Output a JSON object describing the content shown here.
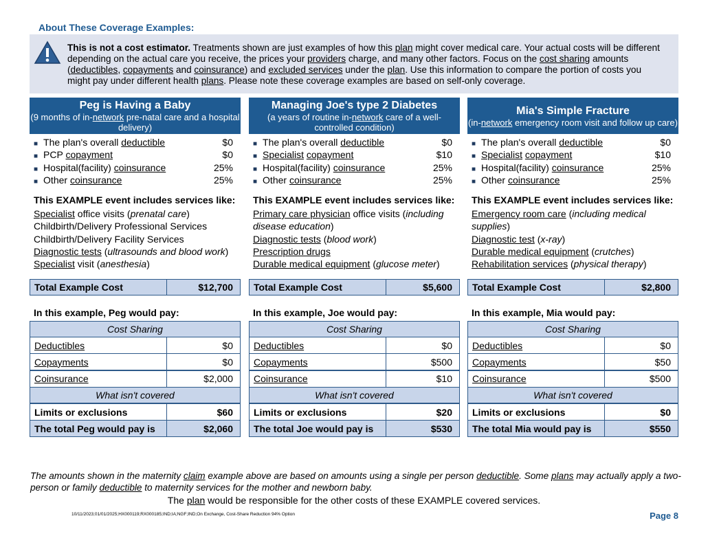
{
  "heading": "About These Coverage Examples:",
  "intro": [
    {
      "b": "This is not a cost estimator."
    },
    " Treatments shown are just examples of how this ",
    {
      "u": "plan"
    },
    " might cover medical care. Your actual costs will be different depending on the actual care you receive, the prices your ",
    {
      "u": "providers"
    },
    " charge, and many other factors. Focus on the ",
    {
      "u": "cost sharing"
    },
    " amounts (",
    {
      "u": "deductibles"
    },
    ", ",
    {
      "u": "copayments"
    },
    " and ",
    {
      "u": "coinsurance"
    },
    ") and ",
    {
      "u": "excluded services"
    },
    " under the ",
    {
      "u": "plan"
    },
    ". Use this information to compare the portion of costs you might pay under different health ",
    {
      "u": "plans"
    },
    ". Please note these coverage examples are based on self-only coverage."
  ],
  "columns": [
    {
      "title": "Peg is Having a Baby",
      "subtitle": [
        "(9 months of in-",
        {
          "u": "network"
        },
        " pre-natal care and a hospital delivery)"
      ],
      "bullets": [
        {
          "label": [
            "The plan's overall ",
            {
              "u": "deductible"
            }
          ],
          "value": "$0"
        },
        {
          "label": [
            "PCP ",
            {
              "u": "copayment"
            }
          ],
          "value": "$0"
        },
        {
          "label": [
            "Hospital(facility) ",
            {
              "u": "coinsurance"
            }
          ],
          "value": "25%"
        },
        {
          "label": [
            "Other ",
            {
              "u": "coinsurance"
            }
          ],
          "value": "25%"
        }
      ],
      "services_heading": "This EXAMPLE event includes services like:",
      "services": [
        [
          {
            "u": "Specialist"
          },
          " office visits (",
          {
            "i": "prenatal care"
          },
          ")"
        ],
        [
          "Childbirth/Delivery Professional Services"
        ],
        [
          "Childbirth/Delivery Facility Services"
        ],
        [
          {
            "u": "Diagnostic tests"
          },
          " (",
          {
            "i": "ultrasounds and blood work"
          },
          ")"
        ],
        [
          {
            "u": "Specialist"
          },
          " visit (",
          {
            "i": "anesthesia"
          },
          ")"
        ]
      ],
      "total_label": "Total Example Cost",
      "total_value": "$12,700",
      "pay_heading": "In this example, Peg would pay:",
      "cost_sharing": "Cost Sharing",
      "rows": [
        {
          "label": "Deductibles",
          "value": "$0"
        },
        {
          "label": "Copayments",
          "value": "$0"
        },
        {
          "label": "Coinsurance",
          "value": "$2,000"
        }
      ],
      "not_covered": "What isn't covered",
      "limits_label": "Limits or exclusions",
      "limits_value": "$60",
      "pay_total_label": "The total Peg would pay is",
      "pay_total_value": "$2,060"
    },
    {
      "title": "Managing Joe's type 2 Diabetes",
      "subtitle": [
        "(a years of routine in-",
        {
          "u": "network"
        },
        " care of a well-controlled condition)"
      ],
      "bullets": [
        {
          "label": [
            "The plan's overall ",
            {
              "u": "deductible"
            }
          ],
          "value": "$0"
        },
        {
          "label": [
            {
              "u": "Specialist"
            },
            " ",
            {
              "u": "copayment"
            }
          ],
          "value": "$10"
        },
        {
          "label": [
            "Hospital(facility) ",
            {
              "u": "coinsurance"
            }
          ],
          "value": "25%"
        },
        {
          "label": [
            "Other ",
            {
              "u": "coinsurance"
            }
          ],
          "value": "25%"
        }
      ],
      "services_heading": "This EXAMPLE event includes services like:",
      "services": [
        [
          {
            "u": "Primary care physician"
          },
          " office visits (",
          {
            "i": "including disease education"
          },
          ")"
        ],
        [
          {
            "u": "Diagnostic tests"
          },
          " (",
          {
            "i": "blood work"
          },
          ")"
        ],
        [
          {
            "u": "Prescription drugs"
          }
        ],
        [
          {
            "u": "Durable medical equipment"
          },
          " (",
          {
            "i": "glucose meter"
          },
          ")"
        ]
      ],
      "total_label": "Total Example Cost",
      "total_value": "$5,600",
      "pay_heading": "In this example, Joe would pay:",
      "cost_sharing": "Cost Sharing",
      "rows": [
        {
          "label": "Deductibles",
          "value": "$0"
        },
        {
          "label": "Copayments",
          "value": "$500"
        },
        {
          "label": "Coinsurance",
          "value": "$10"
        }
      ],
      "not_covered": "What isn't covered",
      "limits_label": "Limits or exclusions",
      "limits_value": "$20",
      "pay_total_label": "The total Joe would pay is",
      "pay_total_value": "$530"
    },
    {
      "title": "Mia's Simple Fracture",
      "subtitle": [
        "(in-",
        {
          "u": "network"
        },
        " emergency room visit and follow up care)"
      ],
      "bullets": [
        {
          "label": [
            "The plan's overall ",
            {
              "u": "deductible"
            }
          ],
          "value": "$0"
        },
        {
          "label": [
            {
              "u": "Specialist"
            },
            " ",
            {
              "u": "copayment"
            }
          ],
          "value": "$10"
        },
        {
          "label": [
            "Hospital(facility) ",
            {
              "u": "coinsurance"
            }
          ],
          "value": "25%"
        },
        {
          "label": [
            "Other ",
            {
              "u": "coinsurance"
            }
          ],
          "value": "25%"
        }
      ],
      "services_heading": "This EXAMPLE event includes services like:",
      "services": [
        [
          {
            "u": "Emergency room care"
          },
          " (",
          {
            "i": "including medical supplies"
          },
          ")"
        ],
        [
          {
            "u": "Diagnostic test"
          },
          " (",
          {
            "i": "x-ray"
          },
          ")"
        ],
        [
          {
            "u": "Durable medical equipment"
          },
          " (",
          {
            "i": "crutches"
          },
          ")"
        ],
        [
          {
            "u": "Rehabilitation services"
          },
          " (",
          {
            "i": "physical therapy"
          },
          ")"
        ]
      ],
      "total_label": "Total Example Cost",
      "total_value": "$2,800",
      "pay_heading": "In this example, Mia would pay:",
      "cost_sharing": "Cost Sharing",
      "rows": [
        {
          "label": "Deductibles",
          "value": "$0"
        },
        {
          "label": "Copayments",
          "value": "$50"
        },
        {
          "label": "Coinsurance",
          "value": "$500"
        }
      ],
      "not_covered": "What isn't covered",
      "limits_label": "Limits or exclusions",
      "limits_value": "$0",
      "pay_total_label": "The total Mia would pay is",
      "pay_total_value": "$550"
    }
  ],
  "footnote": [
    "The amounts shown in the maternity ",
    {
      "u": "claim"
    },
    " example above are based on amounts using a single per person ",
    {
      "u": "deductible"
    },
    ". Some ",
    {
      "u": "plans"
    },
    " may actually apply a two-person or family ",
    {
      "u": "deductible"
    },
    " to maternity services for the mother and newborn baby."
  ],
  "closing": [
    "The ",
    {
      "u": "plan"
    },
    " would be responsible for the other costs of these EXAMPLE covered services."
  ],
  "code": "10/11/2023;01/01/2025;HX000119;RX000185;IND;IA;NGF;IND;On Exchange, Cost-Share Reduction 94% Option",
  "page": "Page 8"
}
